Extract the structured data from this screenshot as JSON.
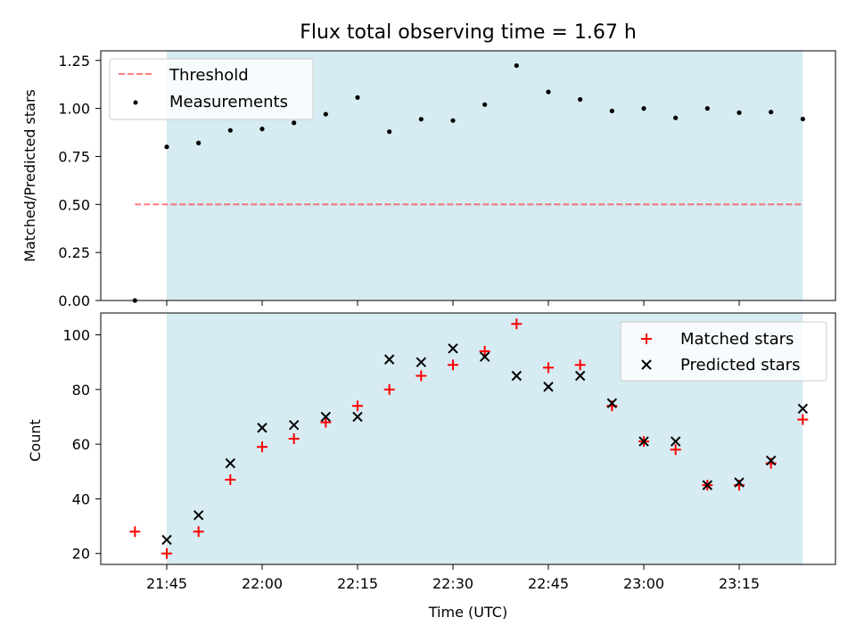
{
  "title": "Flux total observing time = 1.67 h",
  "xlabel": "Time (UTC)",
  "x_ticks": [
    "21:45",
    "22:00",
    "22:15",
    "22:30",
    "22:45",
    "23:00",
    "23:15"
  ],
  "colors": {
    "shade": "#add8e6",
    "threshold": "#ff0000",
    "measurement": "#000000",
    "matched": "#ff0000",
    "predicted": "#000000"
  },
  "chart_data": [
    {
      "type": "scatter",
      "ylabel": "Matched/Predicted stars",
      "ylim": [
        0,
        1.3
      ],
      "y_ticks": [
        "0.00",
        "0.25",
        "0.50",
        "0.75",
        "1.00",
        "1.25"
      ],
      "shaded_span": [
        "21:45",
        "23:25"
      ],
      "threshold": {
        "name": "Threshold",
        "value": 0.5,
        "x": [
          "21:40",
          "23:25"
        ]
      },
      "legend_position": "top-left",
      "series": [
        {
          "name": "Measurements",
          "x": [
            "21:40",
            "21:45",
            "21:50",
            "21:55",
            "22:00",
            "22:05",
            "22:10",
            "22:15",
            "22:20",
            "22:25",
            "22:30",
            "22:35",
            "22:40",
            "22:45",
            "22:50",
            "22:55",
            "23:00",
            "23:05",
            "23:10",
            "23:15",
            "23:20",
            "23:25"
          ],
          "y": [
            0.0,
            0.8,
            0.82,
            0.886,
            0.893,
            0.925,
            0.97,
            1.057,
            0.879,
            0.944,
            0.937,
            1.02,
            1.223,
            1.086,
            1.047,
            0.987,
            1.0,
            0.951,
            1.0,
            0.978,
            0.981,
            0.945
          ]
        }
      ]
    },
    {
      "type": "scatter",
      "ylabel": "Count",
      "ylim": [
        16,
        108
      ],
      "y_ticks": [
        "20",
        "40",
        "60",
        "80",
        "100"
      ],
      "shaded_span": [
        "21:45",
        "23:25"
      ],
      "legend_position": "top-right",
      "series": [
        {
          "name": "Matched stars",
          "marker": "+",
          "x": [
            "21:40",
            "21:45",
            "21:50",
            "21:55",
            "22:00",
            "22:05",
            "22:10",
            "22:15",
            "22:20",
            "22:25",
            "22:30",
            "22:35",
            "22:40",
            "22:45",
            "22:50",
            "22:55",
            "23:00",
            "23:05",
            "23:10",
            "23:15",
            "23:20",
            "23:25"
          ],
          "y": [
            28,
            20,
            28,
            47,
            59,
            62,
            68,
            74,
            80,
            85,
            89,
            94,
            104,
            88,
            89,
            74,
            61,
            58,
            45,
            45,
            53,
            69
          ]
        },
        {
          "name": "Predicted stars",
          "marker": "x",
          "x": [
            "21:45",
            "21:50",
            "21:55",
            "22:00",
            "22:05",
            "22:10",
            "22:15",
            "22:20",
            "22:25",
            "22:30",
            "22:35",
            "22:40",
            "22:45",
            "22:50",
            "22:55",
            "23:00",
            "23:05",
            "23:10",
            "23:15",
            "23:20",
            "23:25"
          ],
          "y": [
            25,
            34,
            53,
            66,
            67,
            70,
            70,
            91,
            90,
            95,
            92,
            85,
            81,
            85,
            75,
            61,
            61,
            45,
            46,
            54,
            73
          ]
        }
      ]
    }
  ]
}
